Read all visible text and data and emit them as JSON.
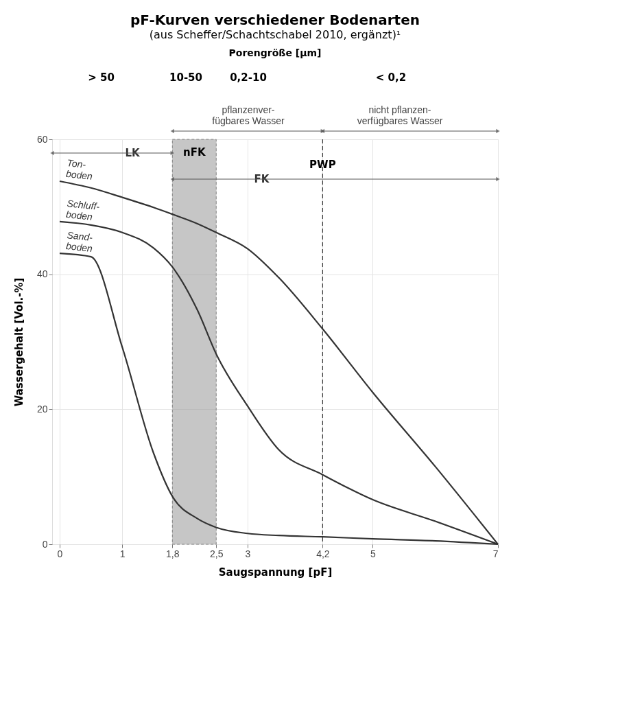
{
  "chart_data": {
    "type": "line",
    "title": "pF-Kurven verschiedener Bodenarten",
    "subtitle": "(aus Scheffer/Schachtschabel 2010, ergänzt)¹",
    "xlabel": "Saugspannung [pF]",
    "ylabel": "Wassergehalt [Vol.-%]",
    "xlim": [
      -0.12,
      7
    ],
    "ylim": [
      0,
      60
    ],
    "xticks": [
      0,
      1,
      {
        "value": 1.8,
        "label": "1,8"
      },
      {
        "value": 2.5,
        "label": "2,5"
      },
      3,
      {
        "value": 4.2,
        "label": "4,2"
      },
      5,
      7
    ],
    "yticks": [
      0,
      20,
      40,
      60
    ],
    "grid": true,
    "marker": "none",
    "line_style": "solid",
    "x": [
      0,
      0.5,
      1,
      1.5,
      1.8,
      2.2,
      2.5,
      3,
      3.5,
      4.2,
      5,
      6,
      7
    ],
    "series": [
      {
        "name": "Ton-\nboden",
        "color": "#333333",
        "values": [
          53.8,
          52.8,
          51.4,
          49.9,
          48.9,
          47.5,
          46.2,
          43.8,
          39.5,
          31.9,
          22.5,
          11.5,
          0
        ]
      },
      {
        "name": "Schluff-\nboden",
        "color": "#333333",
        "values": [
          47.8,
          47.3,
          46.2,
          43.9,
          41.1,
          34.7,
          28.2,
          20.5,
          14.0,
          10.3,
          6.6,
          3.4,
          0
        ]
      },
      {
        "name": "Sand-\nboden",
        "color": "#333333",
        "values": [
          43.1,
          42.6,
          29.2,
          13.5,
          7.1,
          3.8,
          2.5,
          1.6,
          1.3,
          1.1,
          0.8,
          0.5,
          0
        ]
      }
    ],
    "bands": [
      {
        "axis": "x",
        "from": 1.8,
        "to": 2.5,
        "label": "nFK",
        "color": "#999999"
      }
    ],
    "ref_lines": [
      {
        "axis": "x",
        "value": 4.2,
        "label": "PWP",
        "line_style": "dashed"
      }
    ],
    "annotations": [
      "LK",
      "FK",
      "pflanzenver-\nfügbares Wasser",
      "nicht pflanzen-\nverfügbares Wasser",
      "Porengröße [µm]",
      "> 50",
      "10-50",
      "0,2-10",
      "< 0,2"
    ]
  }
}
